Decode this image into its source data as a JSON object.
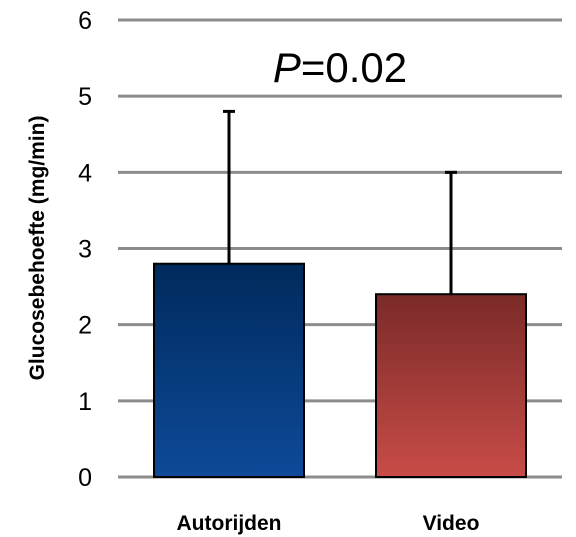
{
  "chart_data": {
    "type": "bar",
    "categories": [
      "Autorijden",
      "Video"
    ],
    "values": [
      2.8,
      2.4
    ],
    "error_upper": [
      4.8,
      4.0
    ],
    "ylabel": "Glucosebehoefte (mg/min)",
    "ylim": [
      0,
      6
    ],
    "yticks": [
      "0",
      "1",
      "2",
      "3",
      "4",
      "5",
      "6"
    ],
    "grid": true,
    "annotation": {
      "italic": "P",
      "text": "=0.02"
    },
    "colors": {
      "Autorijden": [
        "#002a5c",
        "#0e4a99"
      ],
      "Video": [
        "#7a2a28",
        "#c84c48"
      ],
      "grid": "#8c8c8c"
    }
  }
}
